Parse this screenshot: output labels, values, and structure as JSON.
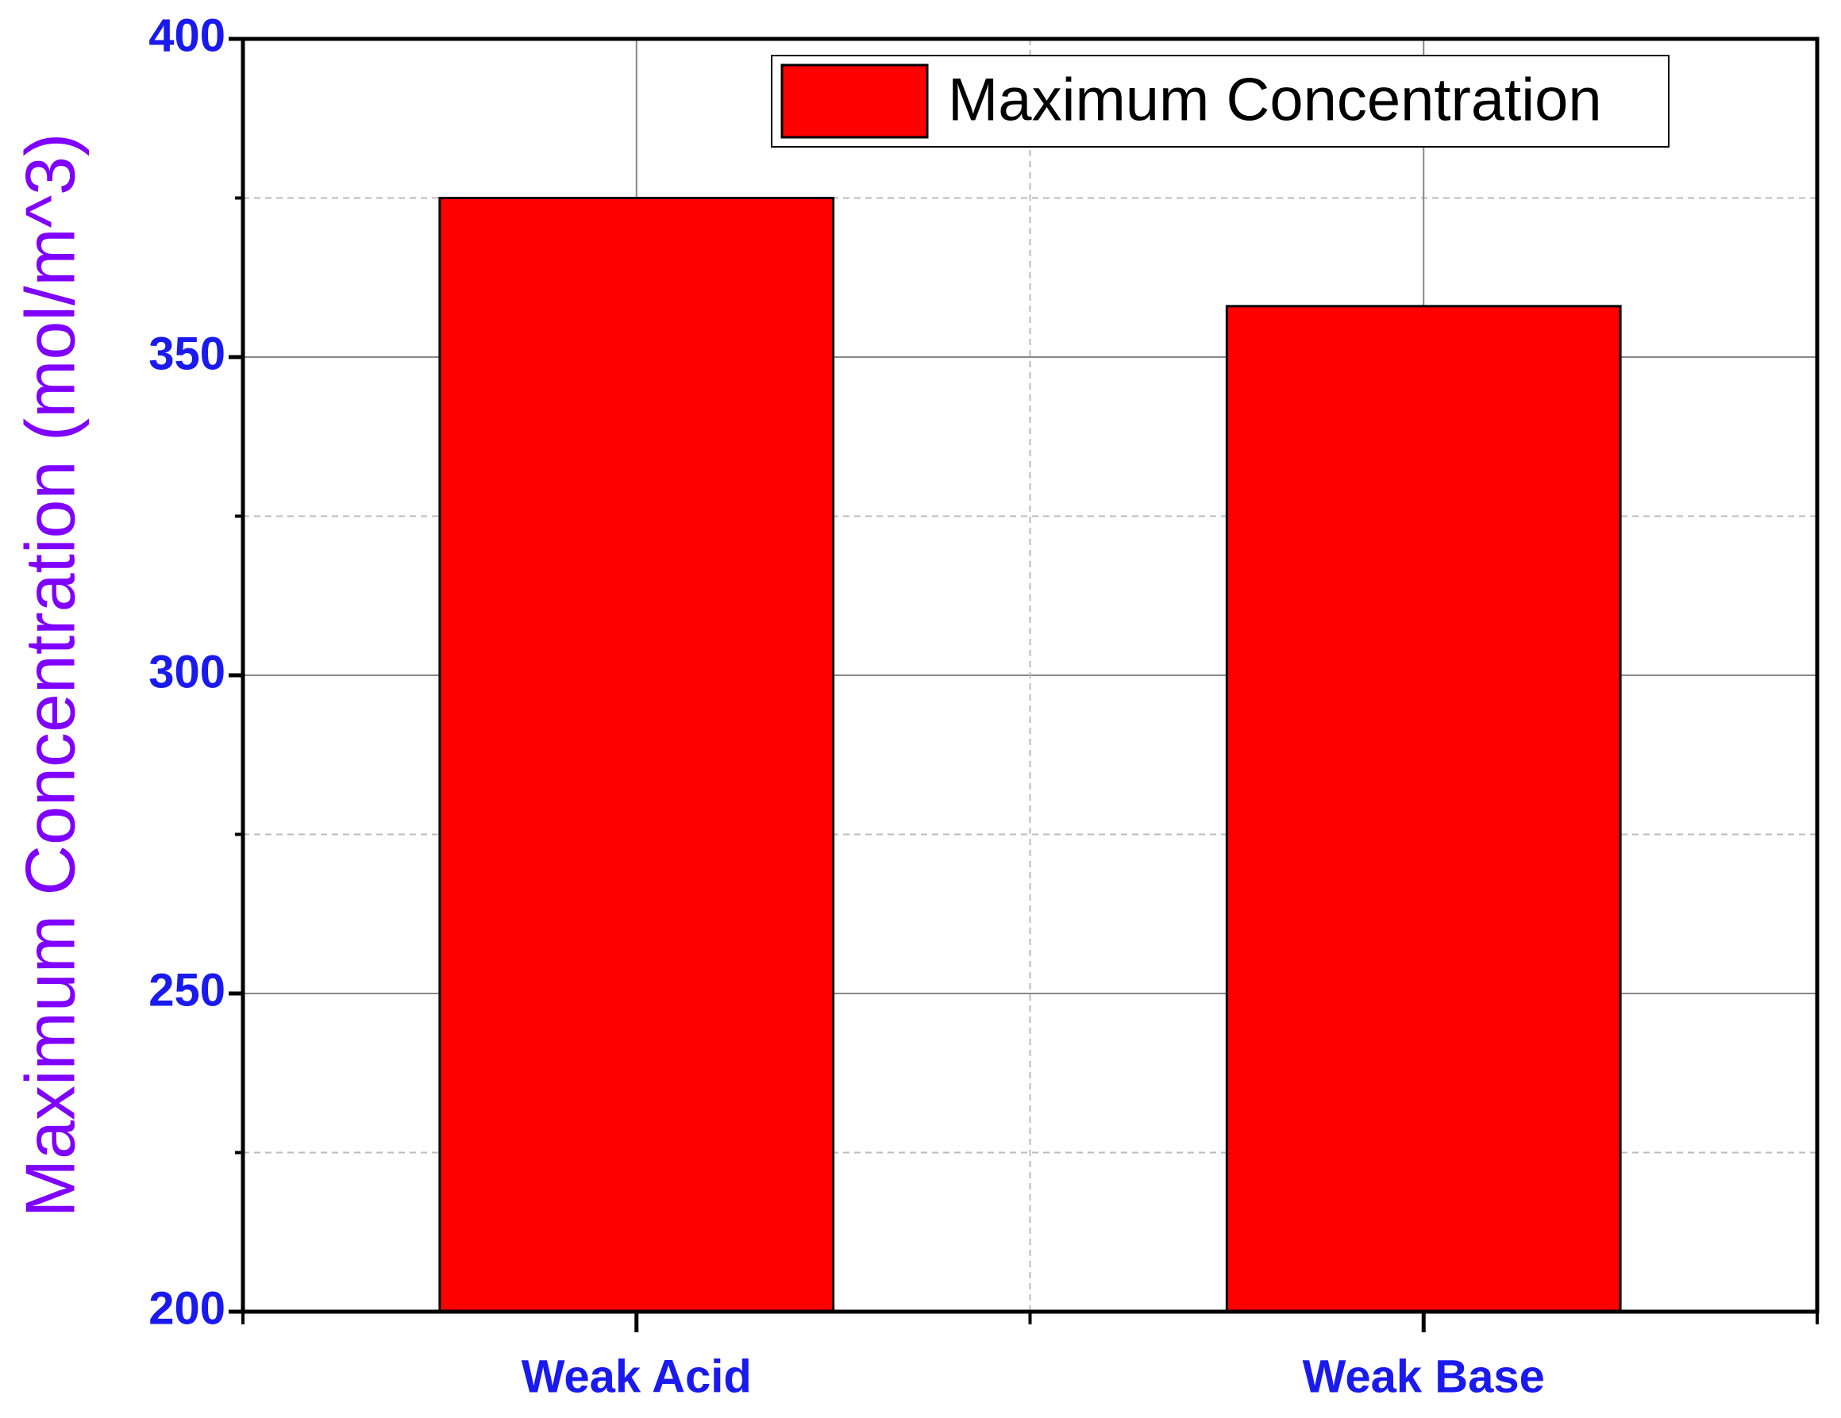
{
  "chart_data": {
    "type": "bar",
    "y_label": "Maximum Concentration (mol/m^3)",
    "categories": [
      "Weak Acid",
      "Weak Base"
    ],
    "series": [
      {
        "name": "Maximum Concentration",
        "color": "#ff0000",
        "values": [
          375,
          358
        ]
      }
    ],
    "ylim": [
      200,
      400
    ],
    "yticks": [
      200,
      250,
      300,
      350,
      400
    ],
    "grid": true,
    "legend": "upper right"
  }
}
